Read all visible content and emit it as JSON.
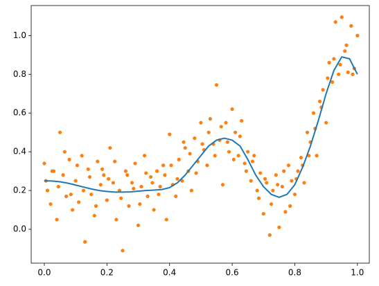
{
  "chart_data": {
    "type": "scatter",
    "xlim": [
      -0.042,
      1.038
    ],
    "ylim": [
      -0.175,
      1.155
    ],
    "xticks": [
      {
        "value": 0,
        "label": "0.0"
      },
      {
        "value": 0.2,
        "label": "0.2"
      },
      {
        "value": 0.4,
        "label": "0.4"
      },
      {
        "value": 0.6,
        "label": "0.6"
      },
      {
        "value": 0.8,
        "label": "0.8"
      },
      {
        "value": 1,
        "label": "1.0"
      }
    ],
    "yticks": [
      {
        "value": 0,
        "label": "0.0"
      },
      {
        "value": 0.2,
        "label": "0.2"
      },
      {
        "value": 0.4,
        "label": "0.4"
      },
      {
        "value": 0.6,
        "label": "0.6"
      },
      {
        "value": 0.8,
        "label": "0.8"
      },
      {
        "value": 1,
        "label": "1.0"
      }
    ],
    "grid": false,
    "series": [
      {
        "type": "scatter",
        "color": "#ff7f0e",
        "x": [
          0,
          0.01,
          0.02,
          0.03,
          0.04,
          0.05,
          0.06,
          0.07,
          0.08,
          0.09,
          0.1,
          0.11,
          0.12,
          0.13,
          0.14,
          0.15,
          0.16,
          0.17,
          0.18,
          0.19,
          0.2,
          0.21,
          0.22,
          0.23,
          0.24,
          0.25,
          0.26,
          0.27,
          0.28,
          0.29,
          0.3,
          0.31,
          0.32,
          0.33,
          0.34,
          0.35,
          0.36,
          0.37,
          0.38,
          0.39,
          0.4,
          0.41,
          0.42,
          0.43,
          0.44,
          0.45,
          0.46,
          0.47,
          0.48,
          0.49,
          0.5,
          0.51,
          0.52,
          0.53,
          0.54,
          0.55,
          0.56,
          0.57,
          0.58,
          0.59,
          0.6,
          0.61,
          0.62,
          0.63,
          0.64,
          0.65,
          0.66,
          0.67,
          0.68,
          0.69,
          0.7,
          0.71,
          0.72,
          0.73,
          0.74,
          0.75,
          0.76,
          0.77,
          0.78,
          0.79,
          0.8,
          0.81,
          0.82,
          0.83,
          0.84,
          0.85,
          0.86,
          0.87,
          0.88,
          0.89,
          0.9,
          0.91,
          0.92,
          0.93,
          0.94,
          0.95,
          0.96,
          0.97,
          0.98,
          0.99,
          1,
          0.005,
          0.025,
          0.045,
          0.065,
          0.085,
          0.105,
          0.125,
          0.145,
          0.165,
          0.185,
          0.205,
          0.225,
          0.245,
          0.265,
          0.285,
          0.305,
          0.325,
          0.345,
          0.365,
          0.385,
          0.405,
          0.425,
          0.445,
          0.465,
          0.485,
          0.505,
          0.525,
          0.545,
          0.565,
          0.585,
          0.605,
          0.625,
          0.645,
          0.665,
          0.685,
          0.705,
          0.725,
          0.745,
          0.765,
          0.785,
          0.805,
          0.825,
          0.845,
          0.865,
          0.885,
          0.905,
          0.925,
          0.945,
          0.965,
          0.985
        ],
        "values": [
          0.34,
          0.2,
          0.13,
          0.3,
          0.05,
          0.5,
          0.28,
          0.17,
          0.36,
          0.1,
          0.25,
          0.14,
          0.38,
          -0.065,
          0.31,
          0.18,
          0.07,
          0.35,
          0.23,
          0.28,
          0.15,
          0.42,
          0.24,
          0.05,
          0.2,
          -0.11,
          0.3,
          0.12,
          0.24,
          0.34,
          0.02,
          0.22,
          0.38,
          0.17,
          0.27,
          0.1,
          0.3,
          0.22,
          0.33,
          0.05,
          0.49,
          0.23,
          0.17,
          0.36,
          0.25,
          0.42,
          0.3,
          0.2,
          0.47,
          0.35,
          0.55,
          0.41,
          0.33,
          0.57,
          0.44,
          0.745,
          0.46,
          0.23,
          0.55,
          0.4,
          0.62,
          0.5,
          0.38,
          0.56,
          0.34,
          0.4,
          0.25,
          0.38,
          0.2,
          0.29,
          0.08,
          0.24,
          -0.03,
          0.2,
          0.28,
          0.01,
          0.22,
          0.09,
          0.33,
          0.25,
          0.18,
          0.3,
          0.37,
          0.24,
          0.5,
          0.45,
          0.6,
          0.38,
          0.66,
          0.72,
          0.55,
          0.86,
          0.76,
          1.07,
          0.8,
          1.095,
          0.92,
          0.81,
          1.05,
          0.83,
          1,
          0.25,
          0.3,
          0.22,
          0.4,
          0.18,
          0.33,
          0.2,
          0.27,
          0.12,
          0.31,
          0.26,
          0.35,
          0.16,
          0.28,
          0.21,
          0.13,
          0.29,
          0.24,
          0.18,
          0.28,
          0.33,
          0.26,
          0.45,
          0.39,
          0.29,
          0.44,
          0.5,
          0.38,
          0.53,
          0.45,
          0.36,
          0.48,
          0.3,
          0.35,
          0.16,
          0.26,
          0.13,
          0.23,
          0.3,
          0.12,
          0.26,
          0.33,
          0.38,
          0.52,
          0.63,
          0.78,
          0.88,
          0.85,
          0.95,
          0.8
        ]
      },
      {
        "type": "line",
        "color": "#1f77b4",
        "x": [
          0,
          0.025,
          0.05,
          0.075,
          0.1,
          0.125,
          0.15,
          0.175,
          0.2,
          0.225,
          0.25,
          0.275,
          0.3,
          0.325,
          0.35,
          0.375,
          0.4,
          0.425,
          0.45,
          0.475,
          0.5,
          0.525,
          0.55,
          0.575,
          0.6,
          0.625,
          0.65,
          0.675,
          0.7,
          0.725,
          0.75,
          0.775,
          0.8,
          0.825,
          0.85,
          0.875,
          0.9,
          0.925,
          0.95,
          0.975,
          1
        ],
        "values": [
          0.25,
          0.249,
          0.245,
          0.238,
          0.228,
          0.218,
          0.208,
          0.2,
          0.195,
          0.192,
          0.192,
          0.193,
          0.197,
          0.2,
          0.202,
          0.205,
          0.215,
          0.24,
          0.28,
          0.33,
          0.38,
          0.43,
          0.46,
          0.47,
          0.46,
          0.43,
          0.36,
          0.28,
          0.22,
          0.18,
          0.165,
          0.18,
          0.23,
          0.32,
          0.43,
          0.56,
          0.7,
          0.82,
          0.89,
          0.88,
          0.8
        ]
      }
    ]
  }
}
